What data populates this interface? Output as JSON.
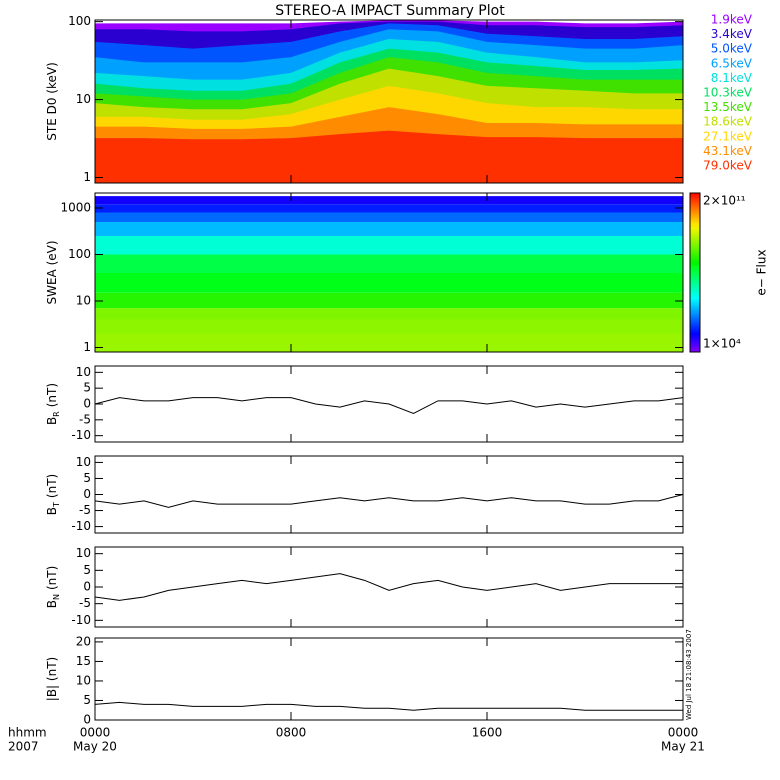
{
  "title": "STEREO-A IMPACT Summary Plot",
  "footer": {
    "format": "hhmm",
    "year": "2007",
    "start_date": "May 20",
    "end_date": "May 21"
  },
  "timestamp": "Wed Jul 18 21:08:43 2007",
  "chart_data": [
    {
      "type": "area",
      "ylabel": "STE D0 (keV)",
      "log_y": true,
      "xlim": [
        0,
        24
      ],
      "ylim": [
        0.85,
        105
      ],
      "yticks": [
        1,
        10,
        100
      ],
      "x": [
        0,
        2,
        4,
        6,
        8,
        10,
        12,
        14,
        16,
        18,
        20,
        22,
        24
      ],
      "series": [
        {
          "name": "1.9keV",
          "color": "#9900ff",
          "values": [
            95,
            95,
            95,
            95,
            95,
            100,
            104,
            104,
            100,
            100,
            95,
            95,
            100
          ]
        },
        {
          "name": "3.4keV",
          "color": "#2a00d0",
          "values": [
            80,
            80,
            75,
            75,
            80,
            95,
            100,
            100,
            90,
            90,
            85,
            85,
            90
          ]
        },
        {
          "name": "5.0keV",
          "color": "#0055ff",
          "values": [
            55,
            50,
            45,
            50,
            55,
            75,
            95,
            90,
            70,
            65,
            60,
            60,
            65
          ]
        },
        {
          "name": "6.5keV",
          "color": "#00a0ff",
          "values": [
            35,
            30,
            30,
            30,
            35,
            55,
            80,
            75,
            55,
            50,
            45,
            45,
            50
          ]
        },
        {
          "name": "8.1keV",
          "color": "#00e0e0",
          "values": [
            22,
            20,
            18,
            18,
            22,
            40,
            60,
            55,
            40,
            35,
            30,
            30,
            32
          ]
        },
        {
          "name": "10.3keV",
          "color": "#00e060",
          "values": [
            16,
            14,
            13,
            13,
            16,
            30,
            45,
            40,
            30,
            27,
            24,
            24,
            25
          ]
        },
        {
          "name": "13.5keV",
          "color": "#40e000",
          "values": [
            12,
            11,
            10,
            10,
            12,
            22,
            35,
            30,
            22,
            20,
            18,
            18,
            18
          ]
        },
        {
          "name": "18.6keV",
          "color": "#c0e000",
          "values": [
            9,
            8,
            7.5,
            7.5,
            9,
            16,
            25,
            20,
            15,
            14,
            13,
            12,
            12
          ]
        },
        {
          "name": "27.1keV",
          "color": "#ffd700",
          "values": [
            6,
            6,
            5.5,
            5.5,
            6.5,
            10,
            15,
            12,
            9,
            8,
            8,
            7.5,
            7.5
          ]
        },
        {
          "name": "43.1keV",
          "color": "#ff8c00",
          "values": [
            4.5,
            4.5,
            4.2,
            4.2,
            4.5,
            6,
            8,
            6.5,
            5,
            5,
            4.8,
            4.8,
            4.8
          ]
        },
        {
          "name": "79.0keV",
          "color": "#ff3000",
          "values": [
            3.2,
            3.2,
            3.1,
            3.1,
            3.2,
            3.6,
            4,
            3.6,
            3.3,
            3.3,
            3.2,
            3.2,
            3.2
          ]
        }
      ]
    },
    {
      "type": "heatmap",
      "ylabel": "SWEA (eV)",
      "log_y": true,
      "xlim": [
        0,
        24
      ],
      "ylim": [
        0.8,
        2100
      ],
      "yticks": [
        1,
        10,
        100,
        1000
      ],
      "y_bins": [
        0.8,
        2,
        4,
        7,
        15,
        40,
        100,
        250,
        500,
        800,
        1200,
        1800
      ],
      "values": [
        1200000000,
        1000000000,
        800000000,
        200000000,
        80000000,
        40000000,
        5000000,
        1000000,
        300000,
        100000,
        50000
      ],
      "colorbar": {
        "label": "e− Flux",
        "lim": [
          10000,
          200000000000
        ],
        "ticks": [
          {
            "value": 10000,
            "label": "1×10⁴"
          },
          {
            "value": 200000000000,
            "label": "2×10¹¹"
          }
        ]
      }
    },
    {
      "type": "line",
      "ylabel": "B",
      "ylabel_sub": "R",
      "ylabel_unit": "(nT)",
      "color": "#000000",
      "xlim": [
        0,
        24
      ],
      "ylim": [
        -12,
        12
      ],
      "yticks": [
        -10,
        -5,
        0,
        5,
        10
      ],
      "x": [
        0,
        1,
        2,
        3,
        4,
        5,
        6,
        7,
        8,
        9,
        10,
        11,
        12,
        13,
        14,
        15,
        16,
        17,
        18,
        19,
        20,
        21,
        22,
        23,
        24
      ],
      "values": [
        0,
        2,
        1,
        1,
        2,
        2,
        1,
        2,
        2,
        0,
        -1,
        1,
        0,
        -3,
        1,
        1,
        0,
        1,
        -1,
        0,
        -1,
        0,
        1,
        1,
        2
      ]
    },
    {
      "type": "line",
      "ylabel": "B",
      "ylabel_sub": "T",
      "ylabel_unit": "(nT)",
      "color": "#000000",
      "xlim": [
        0,
        24
      ],
      "ylim": [
        -12,
        12
      ],
      "yticks": [
        -10,
        -5,
        0,
        5,
        10
      ],
      "x": [
        0,
        1,
        2,
        3,
        4,
        5,
        6,
        7,
        8,
        9,
        10,
        11,
        12,
        13,
        14,
        15,
        16,
        17,
        18,
        19,
        20,
        21,
        22,
        23,
        24
      ],
      "values": [
        -2,
        -3,
        -2,
        -4,
        -2,
        -3,
        -3,
        -3,
        -3,
        -2,
        -1,
        -2,
        -1,
        -2,
        -2,
        -1,
        -2,
        -1,
        -2,
        -2,
        -3,
        -3,
        -2,
        -2,
        0
      ]
    },
    {
      "type": "line",
      "ylabel": "B",
      "ylabel_sub": "N",
      "ylabel_unit": "(nT)",
      "color": "#000000",
      "xlim": [
        0,
        24
      ],
      "ylim": [
        -12,
        12
      ],
      "yticks": [
        -10,
        -5,
        0,
        5,
        10
      ],
      "x": [
        0,
        1,
        2,
        3,
        4,
        5,
        6,
        7,
        8,
        9,
        10,
        11,
        12,
        13,
        14,
        15,
        16,
        17,
        18,
        19,
        20,
        21,
        22,
        23,
        24
      ],
      "values": [
        -3,
        -4,
        -3,
        -1,
        0,
        1,
        2,
        1,
        2,
        3,
        4,
        2,
        -1,
        1,
        2,
        0,
        -1,
        0,
        1,
        -1,
        0,
        1,
        1,
        1,
        1
      ]
    },
    {
      "type": "line",
      "ylabel": "|B| (nT)",
      "color": "#000000",
      "xlim": [
        0,
        24
      ],
      "ylim": [
        0,
        21
      ],
      "yticks": [
        0,
        5,
        10,
        15,
        20
      ],
      "x": [
        0,
        1,
        2,
        3,
        4,
        5,
        6,
        7,
        8,
        9,
        10,
        11,
        12,
        13,
        14,
        15,
        16,
        17,
        18,
        19,
        20,
        21,
        22,
        23,
        24
      ],
      "values": [
        4,
        4.5,
        4,
        4,
        3.5,
        3.5,
        3.5,
        4,
        4,
        3.5,
        3.5,
        3,
        3,
        2.5,
        3,
        3,
        3,
        3,
        3,
        3,
        2.5,
        2.5,
        2.5,
        2.5,
        2.5
      ],
      "xticks": [
        {
          "value": 0,
          "label": "0000"
        },
        {
          "value": 8,
          "label": "0800"
        },
        {
          "value": 16,
          "label": "1600"
        },
        {
          "value": 24,
          "label": "0000"
        }
      ]
    }
  ]
}
